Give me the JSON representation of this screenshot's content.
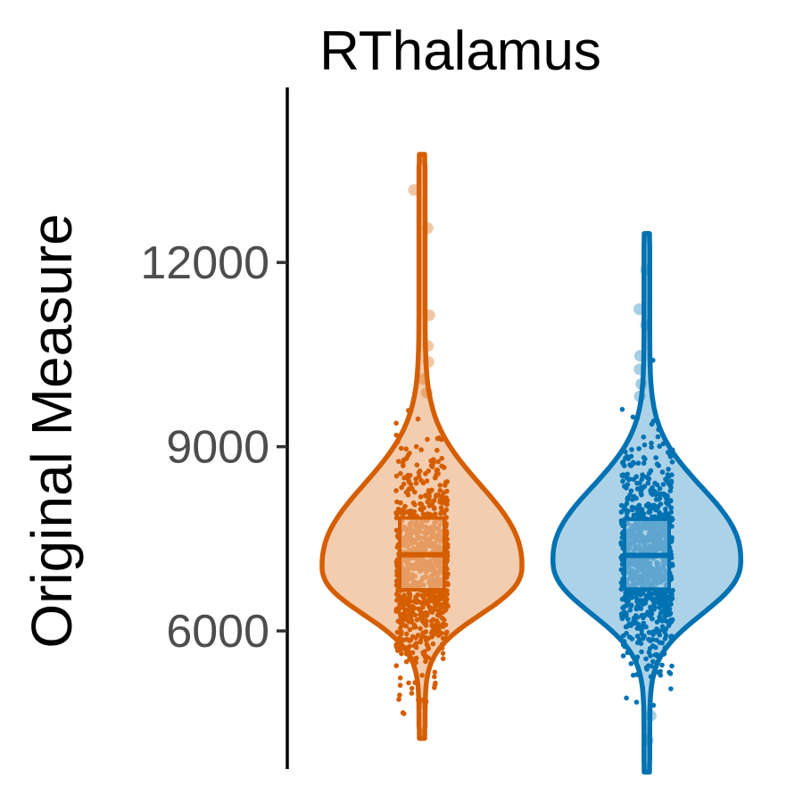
{
  "chart_data": {
    "type": "violin",
    "title": "RThalamus",
    "xlabel": "",
    "ylabel": "Original Measure",
    "ylim": [
      3750,
      14850
    ],
    "y_ticks": [
      6000,
      9000,
      12000
    ],
    "y_tick_labels": [
      "6000",
      "9000",
      "12000"
    ],
    "grid": false,
    "legend": "none",
    "series": [
      {
        "color": "#D55E00",
        "fill": "#F3CDB0",
        "min": 4250,
        "max": 13760,
        "q1": 6670,
        "median": 7240,
        "q3": 7840,
        "mode": 7050,
        "max_density_halfwidth_frac": 1.0,
        "outliers": [
          13180,
          12560,
          11140,
          10640,
          10380,
          10100,
          9880,
          4820
        ]
      },
      {
        "color": "#0072B2",
        "fill": "#ACD2E8",
        "min": 3700,
        "max": 12470,
        "q1": 6680,
        "median": 7230,
        "q3": 7820,
        "mode": 7150,
        "max_density_halfwidth_frac": 0.94,
        "outliers": [
          11880,
          11240,
          10980,
          10480,
          10260,
          10020,
          9820,
          4220,
          4620
        ]
      }
    ]
  }
}
